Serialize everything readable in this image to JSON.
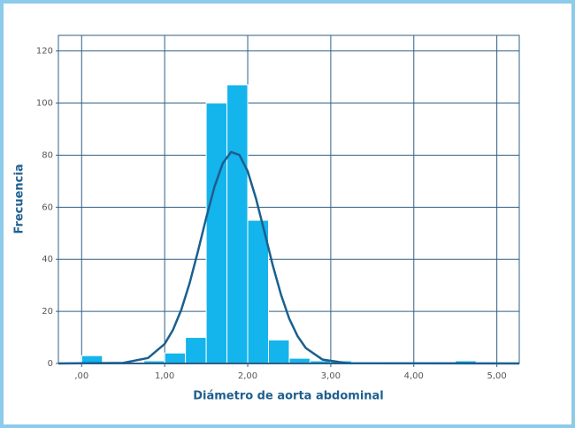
{
  "chart_data": {
    "type": "histogram",
    "xlabel": "Diámetro de aorta abdominal",
    "ylabel": "Frecuencia",
    "bins": [
      0,
      0.25,
      0.5,
      0.75,
      1.0,
      1.25,
      1.5,
      1.75,
      2.0,
      2.25,
      2.5,
      2.75,
      3.0,
      3.25,
      3.5,
      3.75,
      4.0,
      4.25,
      4.5,
      4.75,
      5.0
    ],
    "values": [
      3,
      0,
      0,
      1,
      4,
      10,
      100,
      107,
      55,
      9,
      2,
      1,
      1,
      0,
      0,
      0,
      0,
      0,
      1,
      0
    ],
    "color": "#14b4ec",
    "curve": {
      "color": "#1a5f8f",
      "x": [
        -0.28,
        0.5,
        0.8,
        1.0,
        1.1,
        1.2,
        1.3,
        1.4,
        1.5,
        1.6,
        1.7,
        1.8,
        1.9,
        2.0,
        2.1,
        2.2,
        2.3,
        2.4,
        2.5,
        2.6,
        2.7,
        2.9,
        3.2,
        5.27
      ],
      "values": [
        0,
        0.2,
        2.1,
        7.5,
        12.9,
        20.6,
        30.8,
        43.0,
        55.9,
        67.9,
        76.9,
        81.2,
        80.1,
        73.8,
        63.3,
        50.7,
        37.9,
        26.5,
        17.2,
        10.5,
        5.9,
        1.5,
        0.1,
        0
      ]
    },
    "xlim": [
      -0.28,
      5.27
    ],
    "ylim": [
      0,
      126
    ],
    "xticks": [
      {
        "value": 0,
        "label": ",00"
      },
      {
        "value": 1,
        "label": "1,00"
      },
      {
        "value": 2,
        "label": "2,00"
      },
      {
        "value": 3,
        "label": "3,00"
      },
      {
        "value": 4,
        "label": "4,00"
      },
      {
        "value": 5,
        "label": "5,00"
      }
    ],
    "yticks": [
      0,
      20,
      40,
      60,
      80,
      100,
      120
    ],
    "grid": true,
    "grid_color": "#2f5f86"
  }
}
